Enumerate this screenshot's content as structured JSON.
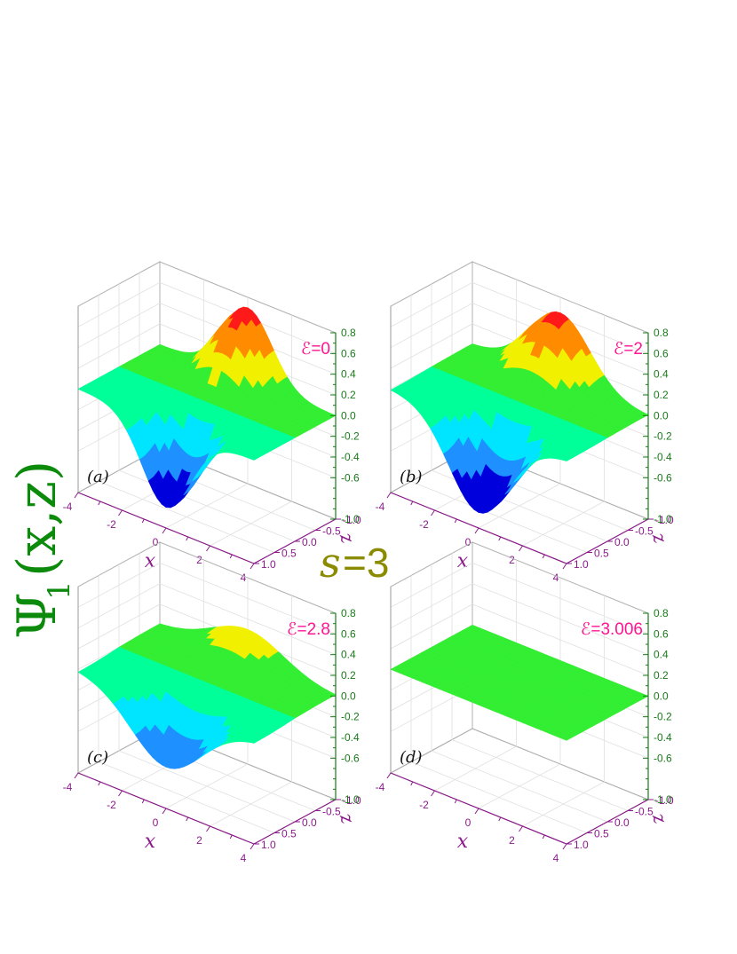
{
  "figure": {
    "ylabel_psi": "Ψ",
    "ylabel_sub": "1",
    "ylabel_args": "(x,z)",
    "s_label_var": "s",
    "s_label_val": "=3",
    "axis_x_label": "x",
    "axis_y_label": "z"
  },
  "chart_data": [
    {
      "type": "surface3d",
      "panel_label": "(a)",
      "energy_label": "ℰ=0",
      "x_ticks": [
        "-4",
        "-2",
        "0",
        "2",
        "4"
      ],
      "y_ticks": [
        "-1.0",
        "-0.5",
        "0.0",
        "0.5",
        "1.0"
      ],
      "z_ticks": [
        "0.8",
        "0.6",
        "0.4",
        "0.2",
        "0.0",
        "-0.2",
        "-0.4",
        "-0.6",
        "-1.0"
      ],
      "xlim": [
        -4,
        4
      ],
      "ylim": [
        -1,
        1
      ],
      "zlim": [
        -1,
        0.8
      ],
      "peak": 0.7,
      "trough": -0.8
    },
    {
      "type": "surface3d",
      "panel_label": "(b)",
      "energy_label": "ℰ=2",
      "x_ticks": [
        "-4",
        "-2",
        "0",
        "2",
        "4"
      ],
      "y_ticks": [
        "-1.0",
        "-0.5",
        "0.0",
        "0.5",
        "1.0"
      ],
      "z_ticks": [
        "0.8",
        "0.6",
        "0.4",
        "0.2",
        "0.0",
        "-0.2",
        "-0.4",
        "-0.6",
        "-1.0"
      ],
      "xlim": [
        -4,
        4
      ],
      "ylim": [
        -1,
        1
      ],
      "zlim": [
        -1,
        0.8
      ],
      "peak": 0.65,
      "trough": -0.85
    },
    {
      "type": "surface3d",
      "panel_label": "(c)",
      "energy_label": "ℰ=2.8",
      "x_ticks": [
        "-4",
        "-2",
        "0",
        "2",
        "4"
      ],
      "y_ticks": [
        "-1.0",
        "-0.5",
        "0.0",
        "0.5",
        "1.0"
      ],
      "z_ticks": [
        "0.8",
        "0.6",
        "0.4",
        "0.2",
        "0.0",
        "-0.2",
        "-0.4",
        "-0.6",
        "-1.0"
      ],
      "xlim": [
        -4,
        4
      ],
      "ylim": [
        -1,
        1
      ],
      "zlim": [
        -1,
        0.8
      ],
      "peak": 0.3,
      "trough": -0.6
    },
    {
      "type": "surface3d",
      "panel_label": "(d)",
      "energy_label": "ℰ=3.006",
      "x_ticks": [
        "-4",
        "-2",
        "0",
        "2",
        "4"
      ],
      "y_ticks": [
        "-1.0",
        "-0.5",
        "0.0",
        "0.5",
        "1.0"
      ],
      "z_ticks": [
        "0.8",
        "0.6",
        "0.4",
        "0.2",
        "0.0",
        "-0.2",
        "-0.4",
        "-0.6",
        "-1.0"
      ],
      "xlim": [
        -4,
        4
      ],
      "ylim": [
        -1,
        1
      ],
      "zlim": [
        -1,
        0.8
      ],
      "peak": 0.0,
      "trough": 0.0
    }
  ]
}
